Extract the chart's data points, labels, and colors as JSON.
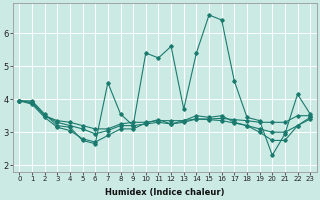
{
  "title": "",
  "xlabel": "Humidex (Indice chaleur)",
  "ylabel": "",
  "background_color": "#cceae4",
  "grid_color": "#ffffff",
  "line_color": "#1a7a6e",
  "xlim": [
    -0.5,
    23.5
  ],
  "ylim": [
    1.8,
    6.9
  ],
  "yticks": [
    2,
    3,
    4,
    5,
    6
  ],
  "xticks": [
    0,
    1,
    2,
    3,
    4,
    5,
    6,
    7,
    8,
    9,
    10,
    11,
    12,
    13,
    14,
    15,
    16,
    17,
    18,
    19,
    20,
    21,
    22,
    23
  ],
  "series": [
    [
      3.95,
      3.95,
      3.55,
      3.2,
      3.15,
      2.75,
      2.65,
      4.5,
      3.55,
      3.2,
      5.4,
      5.25,
      5.6,
      3.7,
      5.4,
      6.55,
      6.4,
      4.55,
      3.45,
      3.35,
      2.3,
      2.95,
      4.15,
      3.55
    ],
    [
      3.95,
      3.9,
      3.5,
      3.35,
      3.3,
      3.2,
      3.1,
      3.1,
      3.25,
      3.3,
      3.3,
      3.35,
      3.35,
      3.35,
      3.4,
      3.4,
      3.42,
      3.38,
      3.35,
      3.3,
      3.3,
      3.3,
      3.5,
      3.5
    ],
    [
      3.95,
      3.9,
      3.5,
      3.3,
      3.2,
      3.1,
      2.95,
      3.05,
      3.2,
      3.2,
      3.25,
      3.3,
      3.25,
      3.3,
      3.4,
      3.38,
      3.35,
      3.28,
      3.2,
      3.1,
      3.0,
      3.0,
      3.2,
      3.4
    ],
    [
      3.95,
      3.85,
      3.45,
      3.15,
      3.05,
      2.8,
      2.7,
      2.9,
      3.1,
      3.1,
      3.28,
      3.38,
      3.25,
      3.35,
      3.5,
      3.45,
      3.5,
      3.3,
      3.2,
      3.0,
      2.75,
      2.75,
      3.2,
      3.45
    ]
  ]
}
